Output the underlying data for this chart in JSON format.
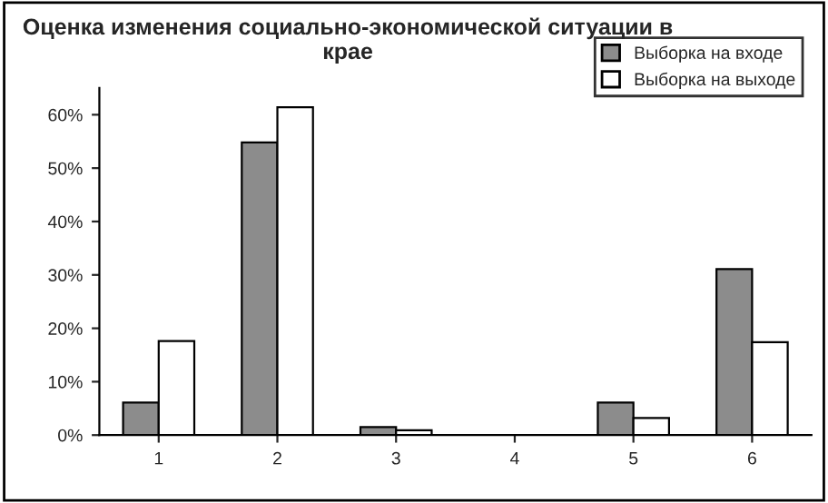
{
  "chart_data": {
    "type": "bar",
    "title": "Оценка изменения социально-экономической ситуации в крае",
    "categories": [
      "1",
      "2",
      "3",
      "4",
      "5",
      "6"
    ],
    "series": [
      {
        "name": "Выборка на входе",
        "color": "#8c8c8c",
        "values": [
          6.1,
          54.8,
          1.5,
          0,
          6.1,
          31.1
        ]
      },
      {
        "name": "Выборка на выходе",
        "color": "#ffffff",
        "values": [
          17.6,
          61.4,
          0.9,
          0,
          3.2,
          17.4
        ]
      }
    ],
    "ylim": [
      0,
      65
    ],
    "yticks": [
      {
        "value": 0,
        "label": "0%"
      },
      {
        "value": 10,
        "label": "10%"
      },
      {
        "value": 20,
        "label": "20%"
      },
      {
        "value": 30,
        "label": "30%"
      },
      {
        "value": 40,
        "label": "40%"
      },
      {
        "value": 50,
        "label": "50%"
      },
      {
        "value": 60,
        "label": "60%"
      }
    ],
    "grid": false,
    "legend": "top right"
  }
}
